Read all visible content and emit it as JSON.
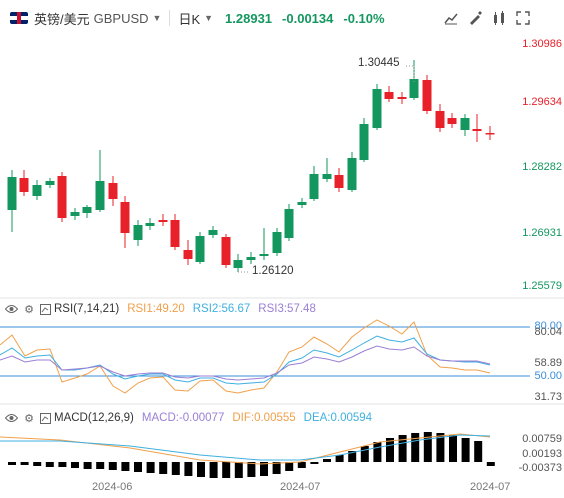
{
  "toolbar": {
    "symbol": "英镑/美元",
    "code": "GBPUSD",
    "period": "日K",
    "last": "1.28931",
    "change": "-0.00134",
    "pct": "-0.10%",
    "icons": [
      "chart-type-icon",
      "draw-icon",
      "indicator-icon",
      "fullscreen-icon"
    ]
  },
  "price_axis": [
    "1.30986",
    "1.29634",
    "1.28282",
    "1.26931",
    "1.25579"
  ],
  "annotations": {
    "high": "1.30445",
    "low": "1.26120"
  },
  "rsi": {
    "label": "RSI(7,14,21)",
    "rsi1": "RSI1:49.20",
    "rsi2": "RSI2:56.67",
    "rsi3": "RSI3:57.48",
    "axis": [
      "80.00",
      "80.04",
      "58.89",
      "50.00",
      "31.73"
    ]
  },
  "macd": {
    "label": "MACD(12,26,9)",
    "macd": "MACD:-0.00077",
    "dif": "DIF:0.00555",
    "dea": "DEA:0.00594",
    "axis": [
      "0.00759",
      "0.00193",
      "-0.00373"
    ]
  },
  "dates": [
    "2024-06",
    "2024-07",
    "2024-07"
  ],
  "colors": {
    "up": "#14975f",
    "down": "#e8202a",
    "rsi1": "#f0a04b",
    "rsi2": "#3fb0e0",
    "rsi3": "#9b7fd4",
    "dif": "#f0a04b",
    "dea": "#3fb0e0",
    "axisline": "#3a8ed8"
  }
}
